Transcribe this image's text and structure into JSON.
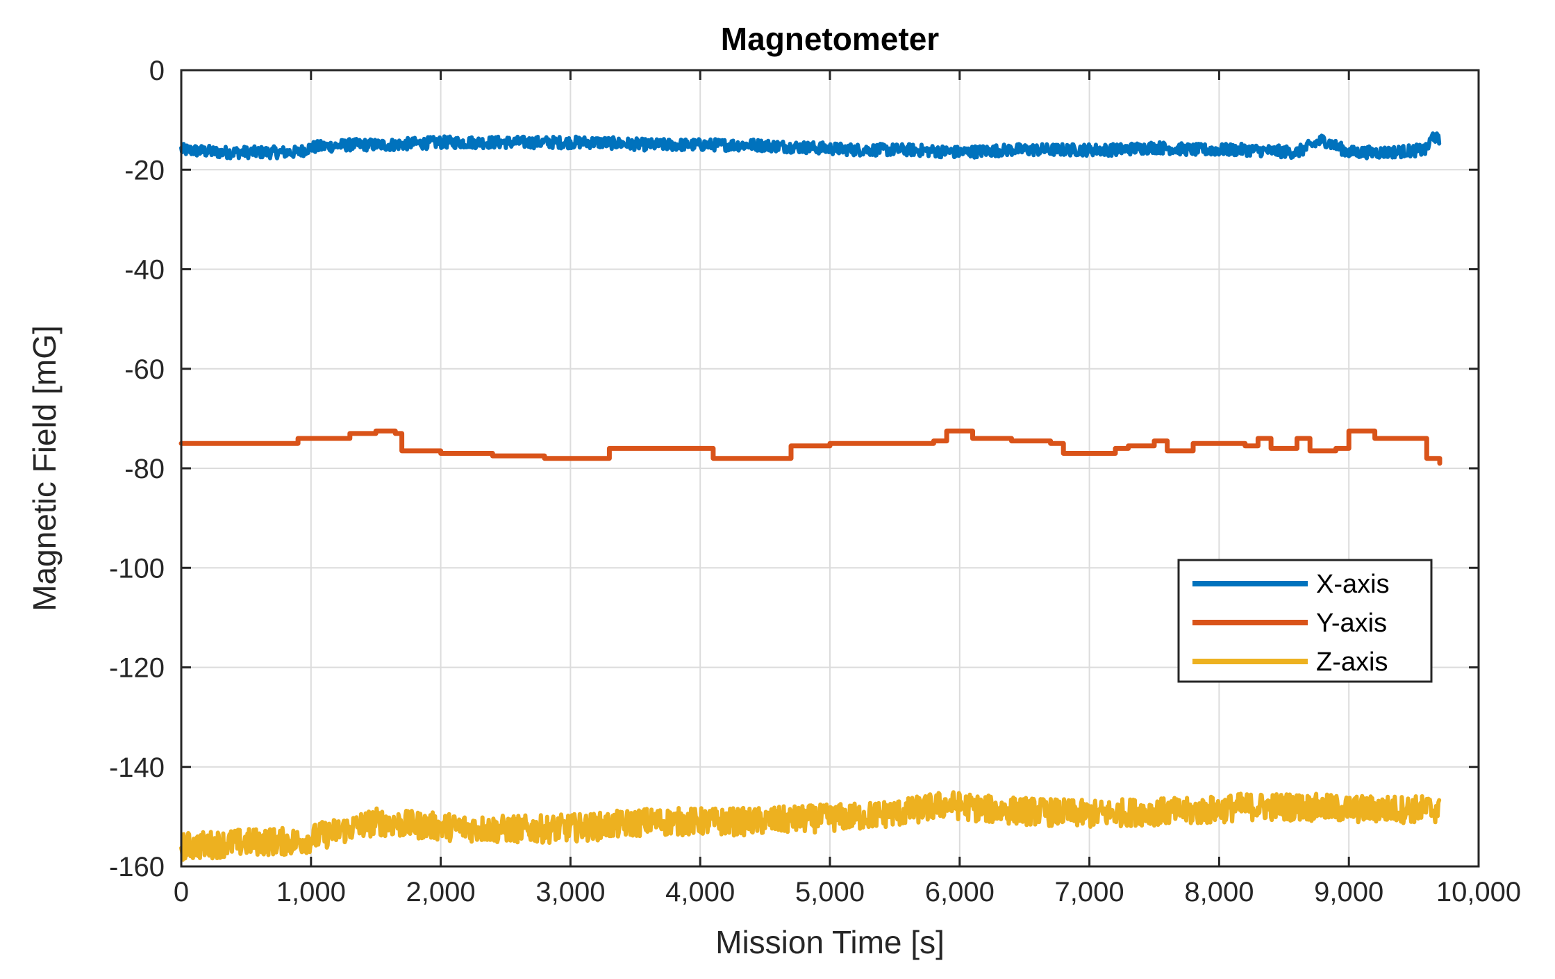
{
  "chart_data": {
    "type": "line",
    "title": "Magnetometer",
    "xlabel": "Mission Time [s]",
    "ylabel": "Magnetic Field [mG]",
    "xlim": [
      0,
      10000
    ],
    "ylim": [
      -160,
      0
    ],
    "xticks": [
      0,
      1000,
      2000,
      3000,
      4000,
      5000,
      6000,
      7000,
      8000,
      9000,
      10000
    ],
    "xtick_labels": [
      "0",
      "1,000",
      "2,000",
      "3,000",
      "4,000",
      "5,000",
      "6,000",
      "7,000",
      "8,000",
      "9,000",
      "10,000"
    ],
    "yticks": [
      0,
      -20,
      -40,
      -60,
      -80,
      -100,
      -120,
      -140,
      -160
    ],
    "ytick_labels": [
      "0",
      "-20",
      "-40",
      "-60",
      "-80",
      "-100",
      "-120",
      "-140",
      "-160"
    ],
    "grid": true,
    "legend_position": "right-center",
    "series": [
      {
        "name": "X-axis",
        "color": "#0072BD",
        "x": [
          0,
          300,
          600,
          900,
          1000,
          1300,
          1600,
          2000,
          2400,
          2800,
          3200,
          3600,
          4000,
          4400,
          4800,
          5200,
          5600,
          6000,
          6400,
          6800,
          7200,
          7500,
          7800,
          8200,
          8600,
          8800,
          9000,
          9300,
          9600,
          9650,
          9700
        ],
        "y": [
          -16,
          -16.5,
          -16.5,
          -16.5,
          -15.5,
          -15,
          -15,
          -14.5,
          -14.5,
          -14.5,
          -14.5,
          -15,
          -15,
          -15,
          -15.5,
          -16,
          -16,
          -16.5,
          -16,
          -16,
          -16,
          -15.5,
          -16,
          -16,
          -16.5,
          -14,
          -16.5,
          -16.5,
          -16,
          -13,
          -14.5
        ],
        "noise": 1.2
      },
      {
        "name": "Y-axis",
        "color": "#D95319",
        "x": [
          0,
          500,
          800,
          900,
          1100,
          1300,
          1500,
          1650,
          1700,
          2000,
          2400,
          2800,
          3200,
          3300,
          3600,
          4000,
          4100,
          4400,
          4600,
          4700,
          5000,
          5400,
          5800,
          5900,
          6100,
          6400,
          6700,
          6800,
          7000,
          7200,
          7300,
          7500,
          7600,
          7800,
          8000,
          8200,
          8300,
          8400,
          8500,
          8600,
          8700,
          8900,
          9000,
          9200,
          9400,
          9550,
          9600,
          9700
        ],
        "y": [
          -75,
          -75,
          -75,
          -74,
          -74,
          -73,
          -72.5,
          -73,
          -76.5,
          -77,
          -77.5,
          -78,
          -78,
          -76,
          -76,
          -76,
          -78,
          -78,
          -78,
          -75.5,
          -75,
          -75,
          -74.5,
          -72.5,
          -74,
          -74.5,
          -75,
          -77,
          -77,
          -76,
          -75.5,
          -74.5,
          -76.5,
          -75,
          -75,
          -75.5,
          -74,
          -76,
          -76,
          -74,
          -76.5,
          -76,
          -72.5,
          -74,
          -74,
          -74,
          -78,
          -79
        ]
      },
      {
        "name": "Z-axis",
        "color": "#EDB120",
        "x": [
          0,
          300,
          600,
          900,
          1200,
          1500,
          1700,
          2000,
          2400,
          2800,
          3200,
          3600,
          4000,
          4400,
          4800,
          5200,
          5600,
          5900,
          6200,
          6600,
          7000,
          7400,
          7800,
          8200,
          8600,
          9000,
          9400,
          9700
        ],
        "y": [
          -156,
          -155.5,
          -155,
          -155,
          -153,
          -151,
          -151.5,
          -152,
          -152.5,
          -152.5,
          -152,
          -151,
          -151,
          -151,
          -150.5,
          -150,
          -149,
          -147.5,
          -148.5,
          -149,
          -149.5,
          -149,
          -149,
          -148,
          -148,
          -148.5,
          -148.5,
          -148.5
        ],
        "noise": 2.8
      }
    ]
  }
}
